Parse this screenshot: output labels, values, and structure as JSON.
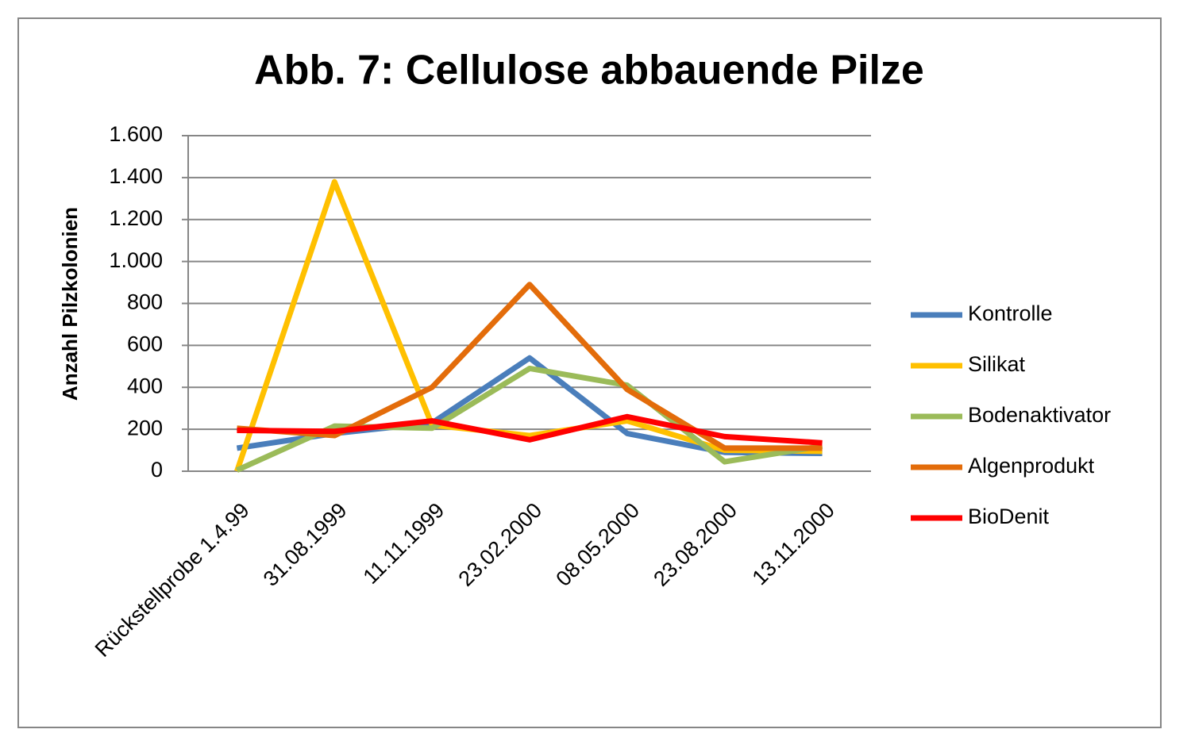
{
  "chart_data": {
    "type": "line",
    "title": "Abb. 7: Cellulose abbauende Pilze",
    "y_label": "Anzahl Pilzkolonien",
    "categories": [
      "Rückstellprobe 1.4.99",
      "31.08.1999",
      "11.11.1999",
      "23.02.2000",
      "08.05.2000",
      "23.08.2000",
      "13.11.2000"
    ],
    "series": [
      {
        "name": "Kontrolle",
        "color": "#4a7ebb",
        "values": [
          110,
          180,
          230,
          540,
          180,
          90,
          85
        ]
      },
      {
        "name": "Silikat",
        "color": "#ffc000",
        "values": [
          0,
          1380,
          220,
          170,
          240,
          100,
          95
        ]
      },
      {
        "name": "Bodenaktivator",
        "color": "#9bbb59",
        "values": [
          5,
          215,
          205,
          490,
          410,
          45,
          120
        ]
      },
      {
        "name": "Algenprodukt",
        "color": "#e36c0a",
        "values": [
          205,
          170,
          400,
          890,
          390,
          110,
          110
        ]
      },
      {
        "name": "BioDenit",
        "color": "#ff0000",
        "values": [
          195,
          190,
          240,
          150,
          260,
          165,
          135
        ]
      }
    ],
    "ylim": [
      0,
      1600
    ],
    "yticks": [
      0,
      200,
      400,
      600,
      800,
      {
        "value": 1000,
        "label": "1.000"
      },
      {
        "value": 1200,
        "label": "1.200"
      },
      {
        "value": 1400,
        "label": "1.400"
      },
      {
        "value": 1600,
        "label": "1.600"
      }
    ],
    "grid": true,
    "legend": "right"
  }
}
